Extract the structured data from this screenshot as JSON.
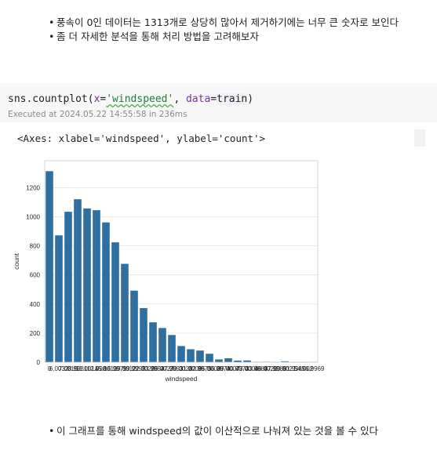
{
  "markdown_top": {
    "bullets": [
      "풍속이 0인 데이터는 1313개로 상당히 많아서 제거하기에는 너무 큰 숫자로 보인다",
      "좀 더 자세한 분석을 통해 처리 방법을 고려해보자"
    ]
  },
  "code_cell": {
    "tokens": {
      "func": "sns.countplot(",
      "x_param": "x",
      "eq1": "=",
      "x_value": "'windspeed'",
      "sep": ", ",
      "data_param": "data",
      "eq2": "=",
      "data_value": "train",
      "close": ")"
    },
    "executed_text": "Executed at 2024.05.22 14:55:58 in 236ms"
  },
  "output": {
    "repr": "<Axes: xlabel='windspeed', ylabel='count'>"
  },
  "chart_data": {
    "type": "bar",
    "xlabel": "windspeed",
    "ylabel": "count",
    "categories": [
      "0",
      "6.0032",
      "7.0015",
      "8.9981",
      "11.0014",
      "12.998",
      "15.0013",
      "16.9979",
      "19.0012",
      "19.9995",
      "22.0028",
      "23.9994",
      "26.0027",
      "27.9993",
      "30.0026",
      "31.0009",
      "32.9975",
      "35.0008",
      "36.9974",
      "39.0007",
      "40.9973",
      "43.0006",
      "43.9989",
      "46.0022",
      "47.9988",
      "50.0021",
      "51.9987",
      "54.002",
      "56.9969"
    ],
    "values": [
      1313,
      872,
      1034,
      1120,
      1057,
      1045,
      961,
      824,
      676,
      492,
      372,
      274,
      235,
      187,
      111,
      89,
      80,
      58,
      19,
      27,
      11,
      12,
      3,
      3,
      2,
      6,
      1,
      1,
      2
    ],
    "ylim": [
      0,
      1385
    ],
    "yticks": [
      0,
      200,
      400,
      600,
      800,
      1000,
      1200
    ],
    "grid": true,
    "bar_color": "#2f6f9f"
  },
  "markdown_bottom": {
    "bullets": [
      "이 그래프를 통해 windspeed의 값이 이산적으로 나눠져 있는 것을 볼 수 있다"
    ]
  }
}
